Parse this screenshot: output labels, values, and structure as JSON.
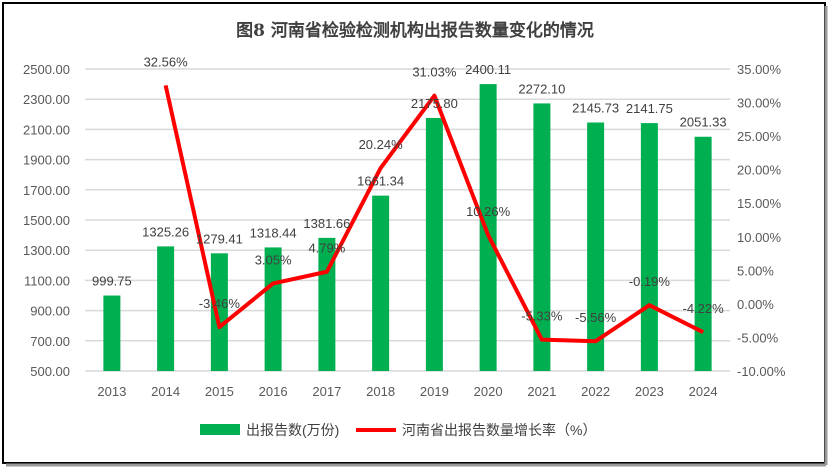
{
  "chart_data": {
    "type": "bar+line",
    "title": "图8  河南省检验检测机构出报告数量变化的情况",
    "categories": [
      "2013",
      "2014",
      "2015",
      "2016",
      "2017",
      "2018",
      "2019",
      "2020",
      "2021",
      "2022",
      "2023",
      "2024"
    ],
    "series": [
      {
        "name": "出报告数(万份)",
        "type": "bar",
        "axis": "left",
        "color": "#00b050",
        "values": [
          999.75,
          1325.26,
          1279.41,
          1318.44,
          1381.66,
          1661.34,
          2175.8,
          2400.11,
          2272.1,
          2145.73,
          2141.75,
          2051.33
        ],
        "labels": [
          "999.75",
          "1325.26",
          "1279.41",
          "1318.44",
          "1381.66",
          "1661.34",
          "2175.80",
          "2400.11",
          "2272.10",
          "2145.73",
          "2141.75",
          "2051.33"
        ]
      },
      {
        "name": "河南省出报告数量增长率（%）",
        "type": "line",
        "axis": "right",
        "color": "#ff0000",
        "values": [
          null,
          32.56,
          -3.46,
          3.05,
          4.79,
          20.24,
          31.03,
          10.26,
          -5.33,
          -5.56,
          -0.19,
          -4.22
        ],
        "labels": [
          null,
          "32.56%",
          "-3.46%",
          "3.05%",
          "4.79%",
          "20.24%",
          "31.03%",
          "10.26%",
          "-5.33%",
          "-5.56%",
          "-0.19%",
          "-4.22%"
        ]
      }
    ],
    "left_axis": {
      "range": [
        500,
        2500
      ],
      "ticks": [
        "500.00",
        "700.00",
        "900.00",
        "1100.00",
        "1300.00",
        "1500.00",
        "1700.00",
        "1900.00",
        "2100.00",
        "2300.00",
        "2500.00"
      ]
    },
    "right_axis": {
      "range": [
        -10,
        35
      ],
      "ticks": [
        "-10.00%",
        "-5.00%",
        "0.00%",
        "5.00%",
        "10.00%",
        "15.00%",
        "20.00%",
        "25.00%",
        "30.00%",
        "35.00%"
      ]
    },
    "grid": true,
    "legend": "bottom"
  }
}
